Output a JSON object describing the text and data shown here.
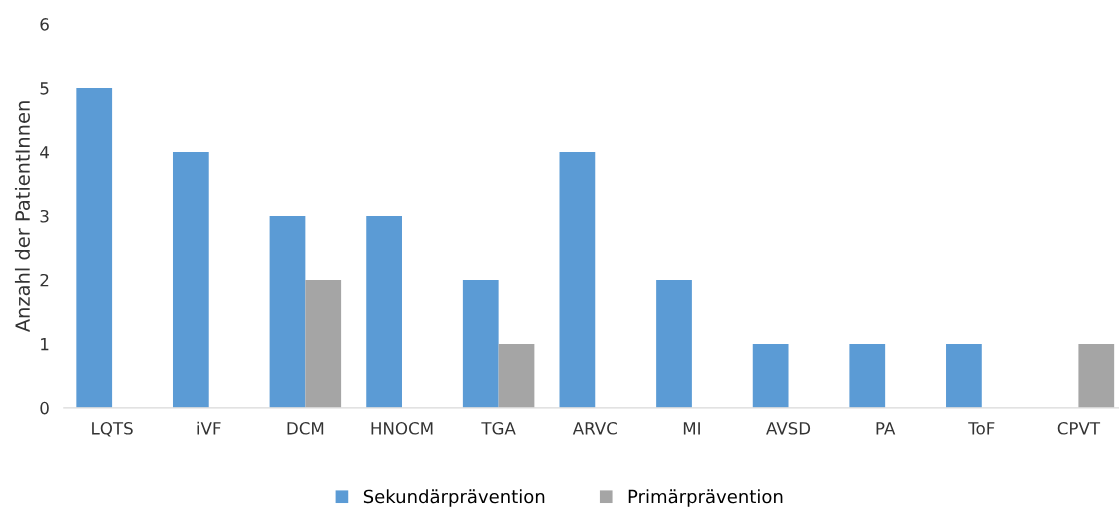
{
  "chart_data": {
    "type": "bar",
    "ylabel": "Anzahl der PatientInnen",
    "categories": [
      "LQTS",
      "iVF",
      "DCM",
      "HNOCM",
      "TGA",
      "ARVC",
      "MI",
      "AVSD",
      "PA",
      "ToF",
      "CPVT"
    ],
    "series": [
      {
        "name": "Sekundärprävention",
        "color": "#5b9bd5",
        "values": [
          5,
          4,
          3,
          3,
          2,
          4,
          2,
          1,
          1,
          1,
          0
        ]
      },
      {
        "name": "Primärprävention",
        "color": "#a5a5a5",
        "values": [
          0,
          0,
          2,
          0,
          1,
          0,
          0,
          0,
          0,
          0,
          1
        ]
      }
    ],
    "ylim": [
      0,
      6
    ],
    "yticks": [
      0,
      1,
      2,
      3,
      4,
      5,
      6
    ],
    "grid": false,
    "legend": "bottom"
  }
}
